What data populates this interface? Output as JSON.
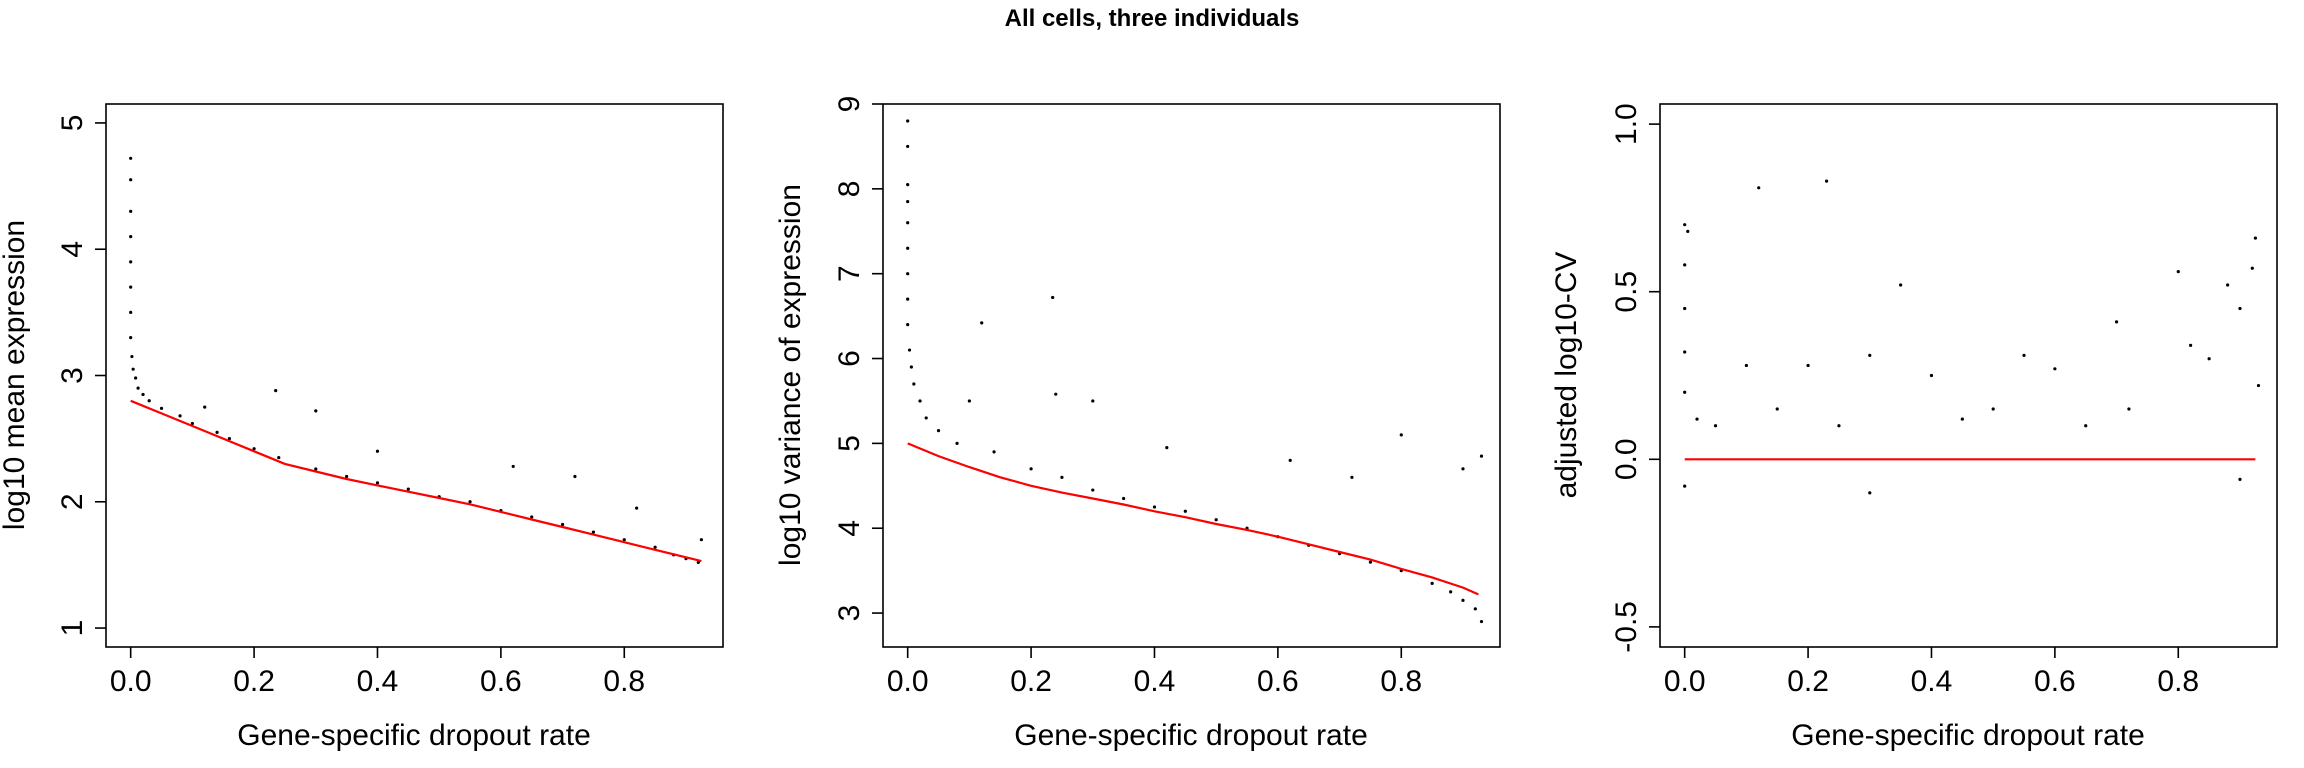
{
  "figure_title": "All cells, three individuals",
  "chart_data": [
    {
      "type": "scatter",
      "title": "",
      "xlabel": "Gene-specific dropout rate",
      "ylabel": "log10 mean expression",
      "xlim": [
        -0.04,
        0.96
      ],
      "ylim": [
        0.85,
        5.15
      ],
      "xticks": [
        0.0,
        0.2,
        0.4,
        0.6,
        0.8
      ],
      "xtick_labels": [
        "0.0",
        "0.2",
        "0.4",
        "0.6",
        "0.8"
      ],
      "yticks": [
        1,
        2,
        3,
        4,
        5
      ],
      "ytick_labels": [
        "1",
        "2",
        "3",
        "4",
        "5"
      ],
      "grid": false,
      "point_color": "#000000",
      "fit_color": "#ff0000",
      "points": [
        [
          0.0,
          4.72
        ],
        [
          0.0,
          4.55
        ],
        [
          0.0,
          4.3
        ],
        [
          0.0,
          4.1
        ],
        [
          0.0,
          3.9
        ],
        [
          0.0,
          3.7
        ],
        [
          0.0,
          3.5
        ],
        [
          0.0,
          3.3
        ],
        [
          0.002,
          3.15
        ],
        [
          0.004,
          3.05
        ],
        [
          0.008,
          2.98
        ],
        [
          0.012,
          2.9
        ],
        [
          0.02,
          2.85
        ],
        [
          0.03,
          2.8
        ],
        [
          0.05,
          2.74
        ],
        [
          0.08,
          2.68
        ],
        [
          0.1,
          2.62
        ],
        [
          0.12,
          2.75
        ],
        [
          0.14,
          2.55
        ],
        [
          0.16,
          2.5
        ],
        [
          0.2,
          2.42
        ],
        [
          0.235,
          2.88
        ],
        [
          0.24,
          2.35
        ],
        [
          0.3,
          2.72
        ],
        [
          0.3,
          2.26
        ],
        [
          0.35,
          2.2
        ],
        [
          0.4,
          2.15
        ],
        [
          0.4,
          2.4
        ],
        [
          0.45,
          2.1
        ],
        [
          0.5,
          2.04
        ],
        [
          0.55,
          2.0
        ],
        [
          0.6,
          1.93
        ],
        [
          0.62,
          2.28
        ],
        [
          0.65,
          1.88
        ],
        [
          0.7,
          1.82
        ],
        [
          0.72,
          2.2
        ],
        [
          0.75,
          1.76
        ],
        [
          0.8,
          1.7
        ],
        [
          0.82,
          1.95
        ],
        [
          0.85,
          1.64
        ],
        [
          0.88,
          1.58
        ],
        [
          0.9,
          1.55
        ],
        [
          0.92,
          1.52
        ],
        [
          0.925,
          1.7
        ]
      ],
      "fit_line": [
        [
          0.0,
          2.8
        ],
        [
          0.05,
          2.7
        ],
        [
          0.1,
          2.6
        ],
        [
          0.15,
          2.5
        ],
        [
          0.2,
          2.4
        ],
        [
          0.25,
          2.3
        ],
        [
          0.3,
          2.24
        ],
        [
          0.35,
          2.18
        ],
        [
          0.4,
          2.13
        ],
        [
          0.45,
          2.08
        ],
        [
          0.5,
          2.03
        ],
        [
          0.55,
          1.98
        ],
        [
          0.6,
          1.92
        ],
        [
          0.65,
          1.86
        ],
        [
          0.7,
          1.8
        ],
        [
          0.75,
          1.74
        ],
        [
          0.8,
          1.68
        ],
        [
          0.85,
          1.62
        ],
        [
          0.9,
          1.56
        ],
        [
          0.925,
          1.53
        ]
      ]
    },
    {
      "type": "scatter",
      "title": "",
      "xlabel": "Gene-specific dropout rate",
      "ylabel": "log10 variance of expression",
      "xlim": [
        -0.04,
        0.96
      ],
      "ylim": [
        2.6,
        9.0
      ],
      "xticks": [
        0.0,
        0.2,
        0.4,
        0.6,
        0.8
      ],
      "xtick_labels": [
        "0.0",
        "0.2",
        "0.4",
        "0.6",
        "0.8"
      ],
      "yticks": [
        3,
        4,
        5,
        6,
        7,
        8,
        9
      ],
      "ytick_labels": [
        "3",
        "4",
        "5",
        "6",
        "7",
        "8",
        "9"
      ],
      "grid": false,
      "point_color": "#000000",
      "fit_color": "#ff0000",
      "points": [
        [
          0.0,
          8.8
        ],
        [
          0.0,
          8.5
        ],
        [
          0.0,
          8.05
        ],
        [
          0.0,
          7.85
        ],
        [
          0.0,
          7.6
        ],
        [
          0.0,
          7.3
        ],
        [
          0.0,
          7.0
        ],
        [
          0.0,
          6.7
        ],
        [
          0.0,
          6.4
        ],
        [
          0.003,
          6.1
        ],
        [
          0.006,
          5.9
        ],
        [
          0.01,
          5.7
        ],
        [
          0.02,
          5.5
        ],
        [
          0.03,
          5.3
        ],
        [
          0.05,
          5.15
        ],
        [
          0.08,
          5.0
        ],
        [
          0.1,
          5.5
        ],
        [
          0.12,
          6.42
        ],
        [
          0.14,
          4.9
        ],
        [
          0.2,
          4.7
        ],
        [
          0.235,
          6.72
        ],
        [
          0.24,
          5.58
        ],
        [
          0.25,
          4.6
        ],
        [
          0.3,
          4.45
        ],
        [
          0.3,
          5.5
        ],
        [
          0.35,
          4.35
        ],
        [
          0.4,
          4.25
        ],
        [
          0.42,
          4.95
        ],
        [
          0.45,
          4.2
        ],
        [
          0.5,
          4.1
        ],
        [
          0.55,
          4.0
        ],
        [
          0.6,
          3.9
        ],
        [
          0.62,
          4.8
        ],
        [
          0.65,
          3.8
        ],
        [
          0.7,
          3.7
        ],
        [
          0.72,
          4.6
        ],
        [
          0.75,
          3.6
        ],
        [
          0.8,
          3.5
        ],
        [
          0.8,
          5.1
        ],
        [
          0.85,
          3.35
        ],
        [
          0.88,
          3.25
        ],
        [
          0.9,
          3.15
        ],
        [
          0.9,
          4.7
        ],
        [
          0.92,
          3.05
        ],
        [
          0.93,
          4.85
        ],
        [
          0.93,
          2.9
        ]
      ],
      "fit_line": [
        [
          0.0,
          5.0
        ],
        [
          0.05,
          4.85
        ],
        [
          0.1,
          4.72
        ],
        [
          0.15,
          4.6
        ],
        [
          0.2,
          4.5
        ],
        [
          0.25,
          4.42
        ],
        [
          0.3,
          4.35
        ],
        [
          0.35,
          4.28
        ],
        [
          0.4,
          4.2
        ],
        [
          0.45,
          4.13
        ],
        [
          0.5,
          4.05
        ],
        [
          0.55,
          3.98
        ],
        [
          0.6,
          3.9
        ],
        [
          0.65,
          3.81
        ],
        [
          0.7,
          3.72
        ],
        [
          0.75,
          3.63
        ],
        [
          0.8,
          3.52
        ],
        [
          0.85,
          3.42
        ],
        [
          0.9,
          3.3
        ],
        [
          0.925,
          3.22
        ]
      ]
    },
    {
      "type": "scatter",
      "title": "",
      "xlabel": "Gene-specific dropout rate",
      "ylabel": "adjusted log10-CV",
      "xlim": [
        -0.04,
        0.96
      ],
      "ylim": [
        -0.56,
        1.06
      ],
      "xticks": [
        0.0,
        0.2,
        0.4,
        0.6,
        0.8
      ],
      "xtick_labels": [
        "0.0",
        "0.2",
        "0.4",
        "0.6",
        "0.8"
      ],
      "yticks": [
        -0.5,
        0.0,
        0.5,
        1.0
      ],
      "ytick_labels": [
        "-0.5",
        "0.0",
        "0.5",
        "1.0"
      ],
      "grid": false,
      "point_color": "#000000",
      "fit_color": "#ff0000",
      "points": [
        [
          0.0,
          0.7
        ],
        [
          0.0,
          0.58
        ],
        [
          0.0,
          0.45
        ],
        [
          0.0,
          0.32
        ],
        [
          0.0,
          0.2
        ],
        [
          0.0,
          -0.08
        ],
        [
          0.005,
          0.68
        ],
        [
          0.02,
          0.12
        ],
        [
          0.05,
          0.1
        ],
        [
          0.1,
          0.28
        ],
        [
          0.12,
          0.81
        ],
        [
          0.15,
          0.15
        ],
        [
          0.2,
          0.28
        ],
        [
          0.23,
          0.83
        ],
        [
          0.25,
          0.1
        ],
        [
          0.3,
          0.31
        ],
        [
          0.3,
          -0.1
        ],
        [
          0.35,
          0.52
        ],
        [
          0.4,
          0.25
        ],
        [
          0.45,
          0.12
        ],
        [
          0.5,
          0.15
        ],
        [
          0.55,
          0.31
        ],
        [
          0.6,
          0.27
        ],
        [
          0.65,
          0.1
        ],
        [
          0.7,
          0.41
        ],
        [
          0.72,
          0.15
        ],
        [
          0.8,
          0.56
        ],
        [
          0.82,
          0.34
        ],
        [
          0.85,
          0.3
        ],
        [
          0.88,
          0.52
        ],
        [
          0.9,
          0.45
        ],
        [
          0.9,
          -0.06
        ],
        [
          0.92,
          0.57
        ],
        [
          0.925,
          0.66
        ],
        [
          0.93,
          0.22
        ]
      ],
      "fit_line": [
        [
          0.0,
          0.0
        ],
        [
          0.925,
          0.0
        ]
      ]
    }
  ]
}
